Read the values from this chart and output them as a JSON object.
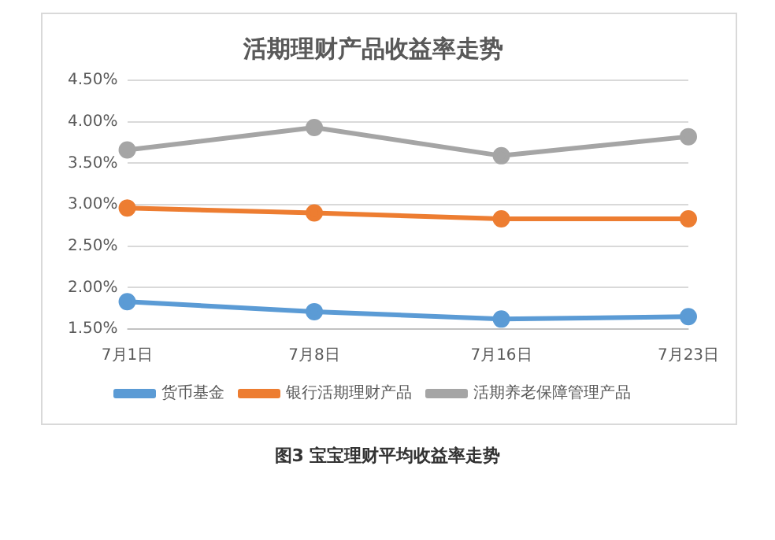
{
  "chart_data": {
    "type": "line",
    "title": "活期理财产品收益率走势",
    "categories": [
      "7月1日",
      "7月8日",
      "7月16日",
      "7月23日"
    ],
    "series": [
      {
        "name": "货币基金",
        "color": "#5b9bd5",
        "values": [
          1.83,
          1.71,
          1.62,
          1.65
        ]
      },
      {
        "name": "银行活期理财产品",
        "color": "#ed7d31",
        "values": [
          2.96,
          2.9,
          2.83,
          2.83
        ]
      },
      {
        "name": "活期养老保障管理产品",
        "color": "#a5a5a5",
        "values": [
          3.66,
          3.93,
          3.59,
          3.82
        ]
      }
    ],
    "ylim": [
      1.5,
      4.5
    ],
    "yticks": [
      {
        "value": 1.5,
        "label": "1.50%"
      },
      {
        "value": 2,
        "label": "2.00%"
      },
      {
        "value": 2.5,
        "label": "2.50%"
      },
      {
        "value": 3,
        "label": "3.00%"
      },
      {
        "value": 3.5,
        "label": "3.50%"
      },
      {
        "value": 4,
        "label": "4.00%"
      },
      {
        "value": 4.5,
        "label": "4.50%"
      }
    ],
    "grid": "y",
    "legend": "bottom",
    "marker": "circle",
    "line_style": "solid",
    "annotations": [
      "图3 宝宝理财平均收益率走势"
    ]
  }
}
